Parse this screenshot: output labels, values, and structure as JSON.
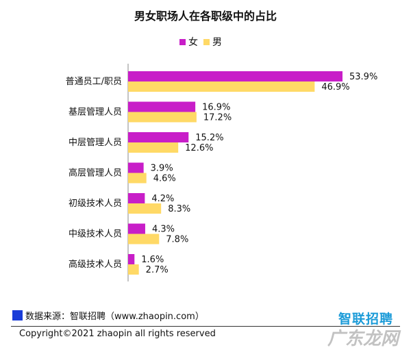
{
  "chart_data": {
    "type": "bar",
    "orientation": "horizontal",
    "title": "男女职场人在各职级中的占比",
    "categories": [
      "普通员工/职员",
      "基层管理人员",
      "中层管理人员",
      "高层管理人员",
      "初级技术人员",
      "中级技术人员",
      "高级技术人员"
    ],
    "series": [
      {
        "name": "女",
        "color": "#c81ec8",
        "values": [
          53.9,
          16.9,
          15.2,
          3.9,
          4.2,
          4.3,
          1.6
        ],
        "labels": [
          "53.9%",
          "16.9%",
          "15.2%",
          "3.9%",
          "4.2%",
          "4.3%",
          "1.6%"
        ]
      },
      {
        "name": "男",
        "color": "#ffd966",
        "values": [
          46.9,
          17.2,
          12.6,
          4.6,
          8.3,
          7.8,
          2.7
        ],
        "labels": [
          "46.9%",
          "17.2%",
          "12.6%",
          "4.6%",
          "8.3%",
          "7.8%",
          "2.7%"
        ]
      }
    ],
    "value_unit": "%",
    "legend_position": "top",
    "grid": false
  },
  "footer": {
    "source": "数据来源：智联招聘（www.zhaopin.com）",
    "logo": "智联招聘",
    "copyright": "Copyright©2021 zhaopin all rights reserved",
    "watermark": "广东龙网"
  }
}
